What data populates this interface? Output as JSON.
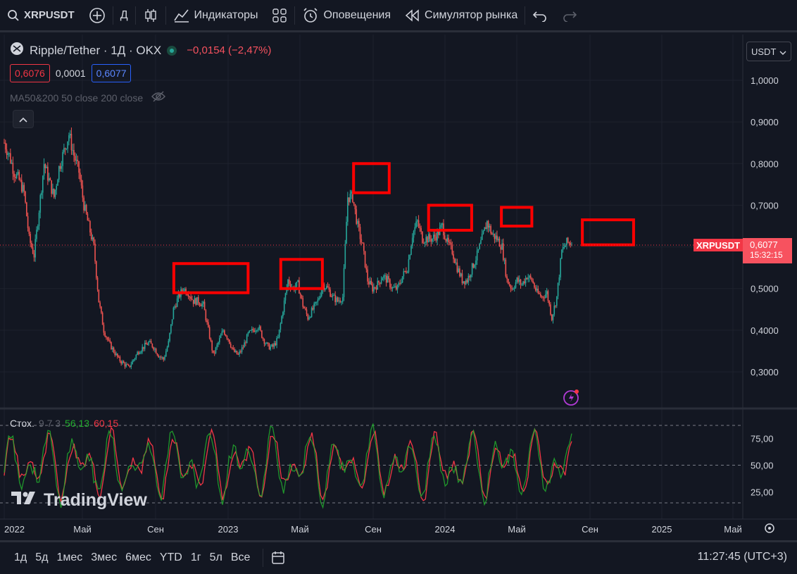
{
  "topbar": {
    "symbol": "XRPUSDT",
    "interval": "Д",
    "indicators": "Индикаторы",
    "alerts": "Оповещения",
    "replay": "Симулятор рынка"
  },
  "legend": {
    "title": "Ripple/Tether · 1Д · OKX",
    "change": "−0,0154 (−2,47%)",
    "bid": "0,6076",
    "spread": "0,0001",
    "ask": "0,6077",
    "ma_label": "MA50&200 50 close 200 close"
  },
  "currency": "USDT",
  "price_axis": {
    "ticks": [
      "1,0000",
      "0,9000",
      "0,8000",
      "0,7000",
      "0,6000",
      "0,5000",
      "0,4000",
      "0,3000"
    ],
    "last_price": "0,6077",
    "countdown": "15:32:15",
    "symbol_tag": "XRPUSDT"
  },
  "stoch": {
    "name": "Стох.",
    "params": "9 7 3",
    "k_value": "56,13",
    "d_value": "60,15",
    "ticks": [
      "75,00",
      "50,00",
      "25,00"
    ]
  },
  "time_axis": [
    "2022",
    "Май",
    "Сен",
    "2023",
    "Май",
    "Сен",
    "2024",
    "Май",
    "Сен",
    "2025",
    "Май"
  ],
  "logo": "TradingView",
  "bottombar": {
    "ranges": [
      "1д",
      "5д",
      "1мес",
      "3мес",
      "6мес",
      "YTD",
      "1г",
      "5л",
      "Все"
    ],
    "clock": "11:27:45 (UTC+3)"
  },
  "colors": {
    "up": "#26a69a",
    "down": "#ef5350",
    "highlight": "#ff0000",
    "background": "#131722"
  },
  "chart_data": {
    "type": "candlestick",
    "ylim": [
      0.28,
      1.02
    ],
    "series_close": [
      0.85,
      0.82,
      0.78,
      0.76,
      0.73,
      0.62,
      0.58,
      0.69,
      0.8,
      0.76,
      0.72,
      0.79,
      0.83,
      0.87,
      0.82,
      0.78,
      0.7,
      0.65,
      0.6,
      0.47,
      0.4,
      0.37,
      0.35,
      0.33,
      0.32,
      0.31,
      0.33,
      0.35,
      0.36,
      0.37,
      0.36,
      0.34,
      0.33,
      0.37,
      0.45,
      0.48,
      0.5,
      0.49,
      0.47,
      0.47,
      0.46,
      0.4,
      0.34,
      0.37,
      0.4,
      0.38,
      0.35,
      0.34,
      0.36,
      0.39,
      0.4,
      0.41,
      0.38,
      0.36,
      0.36,
      0.38,
      0.45,
      0.52,
      0.5,
      0.51,
      0.46,
      0.43,
      0.45,
      0.47,
      0.51,
      0.5,
      0.48,
      0.47,
      0.48,
      0.72,
      0.72,
      0.65,
      0.6,
      0.52,
      0.5,
      0.51,
      0.53,
      0.52,
      0.5,
      0.5,
      0.53,
      0.55,
      0.63,
      0.66,
      0.62,
      0.62,
      0.62,
      0.63,
      0.65,
      0.61,
      0.59,
      0.55,
      0.52,
      0.52,
      0.55,
      0.58,
      0.62,
      0.66,
      0.63,
      0.62,
      0.6,
      0.52,
      0.5,
      0.52,
      0.51,
      0.53,
      0.52,
      0.49,
      0.48,
      0.49,
      0.43,
      0.48,
      0.59,
      0.61,
      0.61
    ],
    "highlights": [
      {
        "x0": 0.234,
        "x1": 0.334,
        "y_top": 0.56,
        "y_bot": 0.49
      },
      {
        "x0": 0.378,
        "x1": 0.434,
        "y_top": 0.57,
        "y_bot": 0.5
      },
      {
        "x0": 0.476,
        "x1": 0.524,
        "y_top": 0.8,
        "y_bot": 0.73
      },
      {
        "x0": 0.577,
        "x1": 0.635,
        "y_top": 0.7,
        "y_bot": 0.64
      },
      {
        "x0": 0.675,
        "x1": 0.716,
        "y_top": 0.695,
        "y_bot": 0.65
      },
      {
        "x0": 0.784,
        "x1": 0.853,
        "y_top": 0.665,
        "y_bot": 0.605
      }
    ]
  }
}
